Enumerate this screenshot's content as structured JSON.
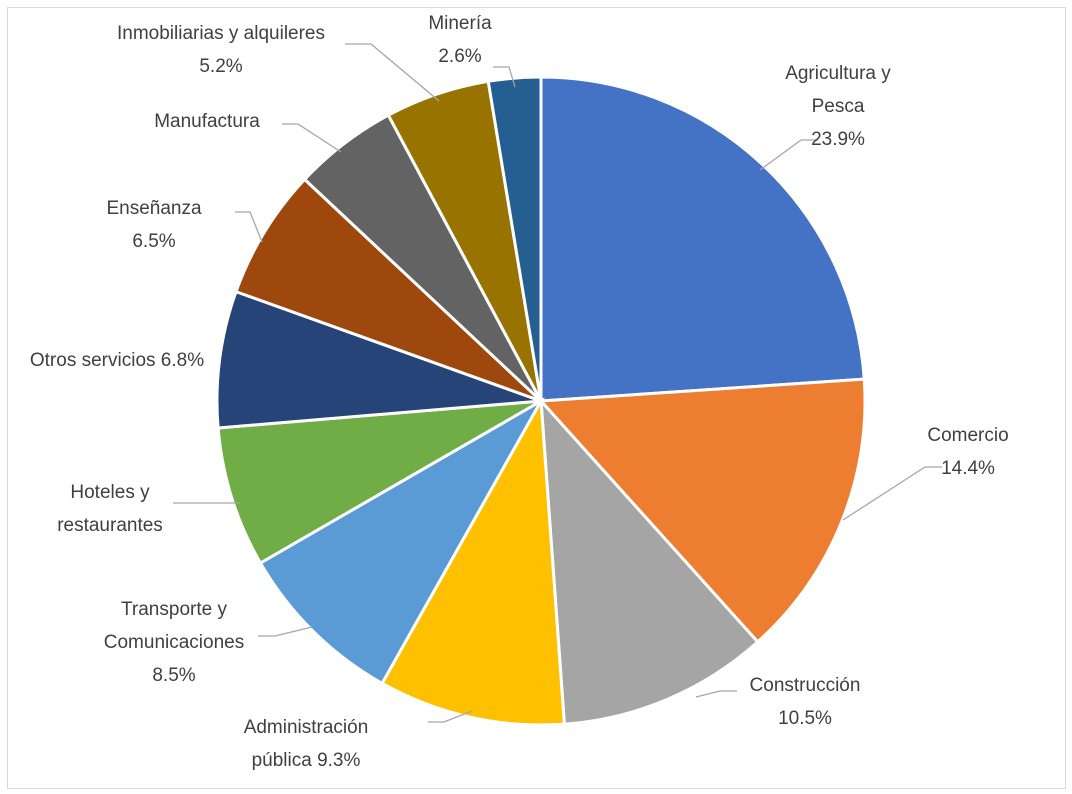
{
  "chart_data": {
    "type": "pie",
    "title": "",
    "start": "top-clockwise",
    "legend": "none",
    "series": [
      {
        "values": [
          23.9,
          14.4,
          10.5,
          9.3,
          8.5,
          7.0,
          6.8,
          6.5,
          5.2,
          5.2,
          2.6
        ],
        "slices": [
          {
            "label_lines": [
              "Agricultura y",
              "Pesca",
              "23.9%"
            ],
            "value": 23.9,
            "color": "#4472C4"
          },
          {
            "label_lines": [
              "Comercio",
              "14.4%"
            ],
            "value": 14.4,
            "color": "#ED7D31"
          },
          {
            "label_lines": [
              "Construcción",
              "10.5%"
            ],
            "value": 10.5,
            "color": "#A5A5A5"
          },
          {
            "label_lines": [
              "Administración",
              "pública 9.3%"
            ],
            "value": 9.3,
            "color": "#FFC000"
          },
          {
            "label_lines": [
              "Transporte y",
              "Comunicaciones",
              "8.5%"
            ],
            "value": 8.5,
            "color": "#5B9BD5"
          },
          {
            "label_lines": [
              "Hoteles y",
              "restaurantes"
            ],
            "value": 7.0,
            "color": "#70AD47"
          },
          {
            "label_lines": [
              "Otros servicios 6.8%"
            ],
            "value": 6.8,
            "color": "#264478"
          },
          {
            "label_lines": [
              "Enseñanza",
              "6.5%"
            ],
            "value": 6.5,
            "color": "#9E480E"
          },
          {
            "label_lines": [
              "Manufactura"
            ],
            "value": 5.2,
            "color": "#636363"
          },
          {
            "label_lines": [
              "Inmobiliarias y alquileres",
              "5.2%"
            ],
            "value": 5.2,
            "color": "#997300"
          },
          {
            "label_lines": [
              "Minería",
              "2.6%"
            ],
            "value": 2.6,
            "color": "#255E91"
          }
        ]
      }
    ]
  }
}
